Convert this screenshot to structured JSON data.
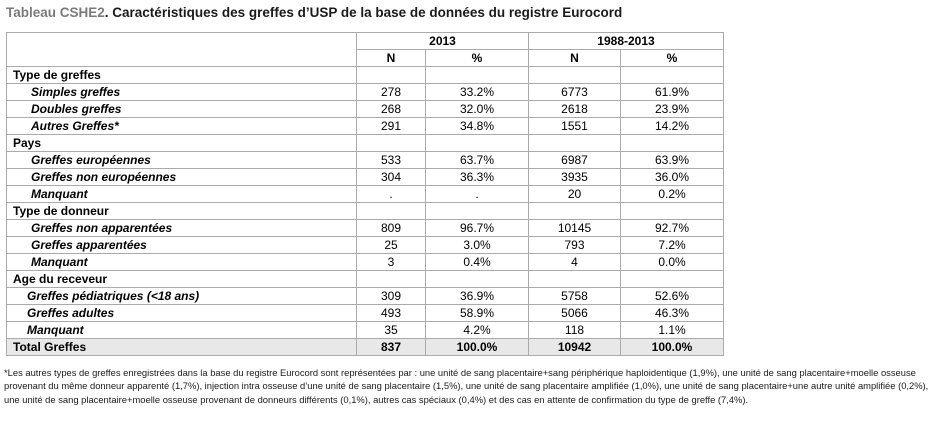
{
  "title": {
    "tag": "Tableau CSHE2",
    "text": ". Caractéristiques des greffes d’USP de la base de données du registre Eurocord"
  },
  "header": {
    "group1": "2013",
    "group2": "1988-2013",
    "n": "N",
    "pct": "%"
  },
  "rows": [
    {
      "label": "Type de greffes"
    },
    {
      "label": "Simples greffes",
      "v": [
        "278",
        "33.2%",
        "6773",
        "61.9%"
      ]
    },
    {
      "label": "Doubles greffes",
      "v": [
        "268",
        "32.0%",
        "2618",
        "23.9%"
      ]
    },
    {
      "label": "Autres Greffes*",
      "v": [
        "291",
        "34.8%",
        "1551",
        "14.2%"
      ]
    },
    {
      "label": "Pays"
    },
    {
      "label": "Greffes européennes",
      "v": [
        "533",
        "63.7%",
        "6987",
        "63.9%"
      ]
    },
    {
      "label": "Greffes non européennes",
      "v": [
        "304",
        "36.3%",
        "3935",
        "36.0%"
      ]
    },
    {
      "label": "Manquant",
      "v": [
        ".",
        ".",
        "20",
        "0.2%"
      ]
    },
    {
      "label": "Type de donneur"
    },
    {
      "label": "Greffes non apparentées",
      "v": [
        "809",
        "96.7%",
        "10145",
        "92.7%"
      ]
    },
    {
      "label": "Greffes apparentées",
      "v": [
        "25",
        "3.0%",
        "793",
        "7.2%"
      ]
    },
    {
      "label": "Manquant",
      "v": [
        "3",
        "0.4%",
        "4",
        "0.0%"
      ]
    },
    {
      "label": "Age du receveur"
    },
    {
      "label": "Greffes pédiatriques (<18 ans)",
      "v": [
        "309",
        "36.9%",
        "5758",
        "52.6%"
      ]
    },
    {
      "label": "Greffes adultes",
      "v": [
        "493",
        "58.9%",
        "5066",
        "46.3%"
      ]
    },
    {
      "label": "Manquant",
      "v": [
        "35",
        "4.2%",
        "118",
        "1.1%"
      ]
    },
    {
      "label": "Total Greffes",
      "v": [
        "837",
        "100.0%",
        "10942",
        "100.0%"
      ]
    }
  ],
  "footnote": "*Les autres types de greffes enregistrées dans la base du registre Eurocord sont représentées par : une unité de sang placentaire+sang périphérique haploidentique (1,9%), une unité de sang placentaire+moelle osseuse provenant du même donneur apparenté (1,7%), injection intra osseuse d’une unité de sang placentaire (1,5%), une unité de sang placentaire amplifiée (1,0%), une unité de sang placentaire+une autre unité amplifiée (0,2%), une unité de sang placentaire+moelle osseuse provenant de donneurs différents (0,1%), autres cas spéciaux (0,4%) et des cas en attente de confirmation du type de greffe (7,4%)."
}
